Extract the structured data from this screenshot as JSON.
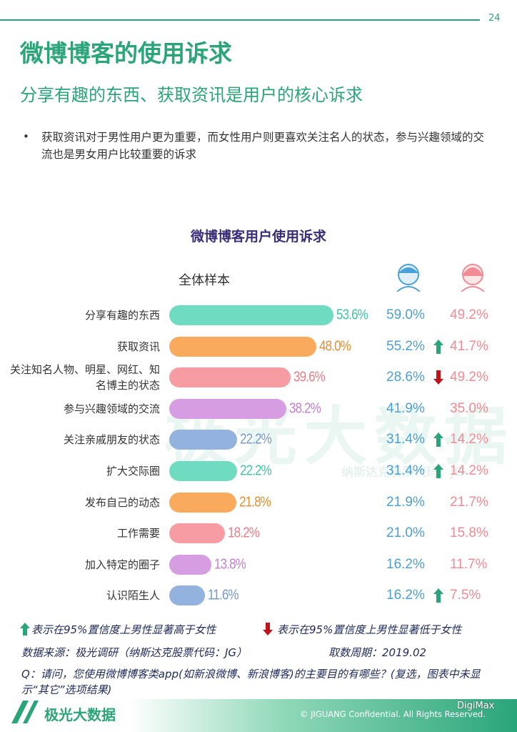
{
  "page_number": "24",
  "title": "微博博客的使用诉求",
  "subtitle": "分享有趣的东西、获取资讯是用户的核心诉求",
  "bullet": "获取资讯对于男性用户更为重要，而女性用户则更喜欢关注名人的状态，参与兴趣领域的交流也是男女用户比较重要的诉求",
  "chart_data": {
    "type": "bar",
    "title": "微博博客用户使用诉求",
    "categories": [
      "分享有趣的东西",
      "获取资讯",
      "关注知名人物、明星、网红、知名博主的状态",
      "参与兴趣领域的交流",
      "关注亲戚朋友的状态",
      "扩大交际圈",
      "发布自己的动态",
      "工作需要",
      "加入特定的圈子",
      "认识陌生人"
    ],
    "series": [
      {
        "name": "全体样本",
        "colors": [
          "#6fdcc2",
          "#f9aa5c",
          "#f79ca3",
          "#d69de2",
          "#93b3de",
          "#6fdcc2",
          "#f9aa5c",
          "#f79ca3",
          "#d69de2",
          "#93b3de"
        ],
        "values": [
          53.6,
          48.0,
          39.6,
          38.2,
          22.2,
          22.2,
          21.8,
          18.2,
          13.8,
          11.6
        ],
        "value_labels": [
          "53.6%",
          "48.0%",
          "39.6%",
          "38.2%",
          "22.2%",
          "22.2%",
          "21.8%",
          "18.2%",
          "13.8%",
          "11.6%"
        ]
      },
      {
        "color": "#4aa0d9",
        "values": [
          59.0,
          55.2,
          28.6,
          41.9,
          31.4,
          31.4,
          21.9,
          21.0,
          16.2,
          16.2
        ],
        "value_labels": [
          "59.0%",
          "55.2%",
          "28.6%",
          "41.9%",
          "31.4%",
          "31.4%",
          "21.9%",
          "21.0%",
          "16.2%",
          "16.2%"
        ]
      },
      {
        "color": "#f28b93",
        "values": [
          49.2,
          41.7,
          49.2,
          35.0,
          14.2,
          14.2,
          21.7,
          15.8,
          11.7,
          7.5
        ],
        "value_labels": [
          "49.2%",
          "41.7%",
          "49.2%",
          "35.0%",
          "14.2%",
          "14.2%",
          "21.7%",
          "15.8%",
          "11.7%",
          "7.5%"
        ]
      }
    ],
    "significance": [
      null,
      "up",
      "down",
      null,
      "up",
      "up",
      null,
      null,
      null,
      "up"
    ],
    "legend_up": "表示在95%置信度上男性显著高于女性",
    "legend_down": "表示在95%置信度上男性显著低于女性"
  },
  "source": "数据来源：极光调研（纳斯达克股票代码：JG）",
  "period": "取数周期：2019.02",
  "question": "Q：请问，您使用微博博客类app(如新浪微博、新浪博客)的主要目的有哪些？(复选，图表中未显示“其它”选项结果)",
  "watermark": "极光大数据",
  "watermark_sub": "纳斯达克股票代码：JG",
  "logo": "极光大数据",
  "copyright": "© JIGUANG Confidential. All Rights Reserved.",
  "wechat": "DigiMax"
}
